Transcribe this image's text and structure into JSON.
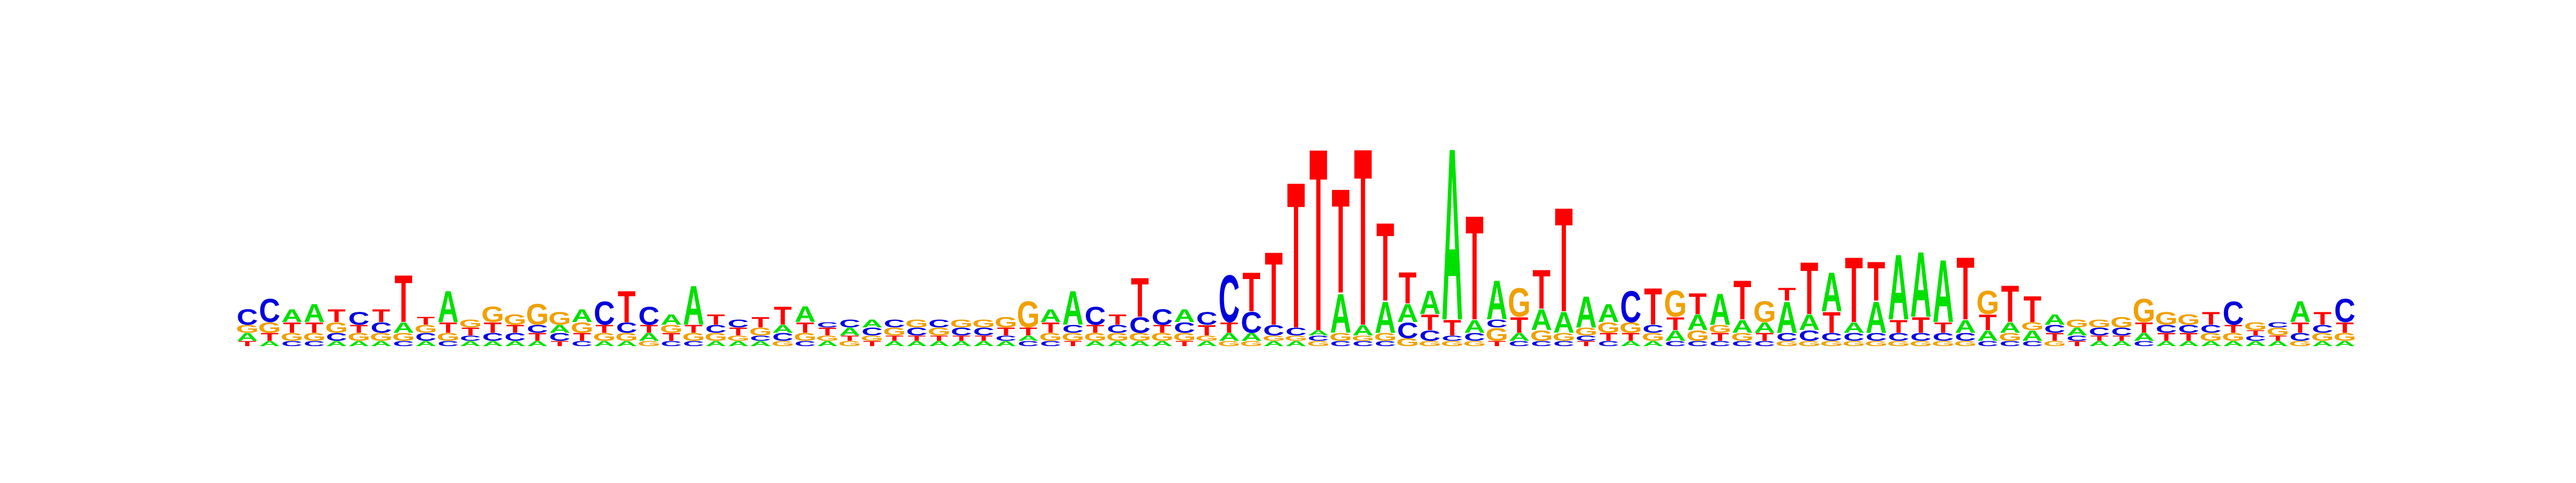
{
  "chart_data": {
    "type": "sequence-logo",
    "title": "",
    "xlabel": "",
    "ylabel": "",
    "alphabet": [
      "A",
      "C",
      "G",
      "T"
    ],
    "colors": {
      "A": "#00e000",
      "C": "#0000dd",
      "G": "#f0a000",
      "T": "#ff0000"
    },
    "ylim": [
      0,
      2
    ],
    "positions": [
      {
        "T": 0.02,
        "A": 0.03,
        "G": 0.03,
        "C": 0.06
      },
      {
        "A": 0.02,
        "T": 0.03,
        "G": 0.04,
        "C": 0.09
      },
      {
        "C": 0.02,
        "G": 0.03,
        "T": 0.04,
        "A": 0.05
      },
      {
        "C": 0.02,
        "G": 0.03,
        "T": 0.04,
        "A": 0.07
      },
      {
        "A": 0.02,
        "C": 0.03,
        "G": 0.04,
        "T": 0.05
      },
      {
        "A": 0.02,
        "G": 0.03,
        "T": 0.03,
        "C": 0.05
      },
      {
        "A": 0.02,
        "G": 0.03,
        "C": 0.04,
        "T": 0.05
      },
      {
        "C": 0.02,
        "G": 0.03,
        "A": 0.04,
        "T": 0.18
      },
      {
        "A": 0.02,
        "C": 0.03,
        "G": 0.03,
        "T": 0.03
      },
      {
        "C": 0.02,
        "G": 0.03,
        "T": 0.04,
        "A": 0.12
      },
      {
        "A": 0.02,
        "C": 0.02,
        "T": 0.03,
        "G": 0.03
      },
      {
        "A": 0.02,
        "C": 0.03,
        "T": 0.04,
        "G": 0.06
      },
      {
        "A": 0.02,
        "C": 0.03,
        "T": 0.03,
        "G": 0.04
      },
      {
        "A": 0.02,
        "T": 0.03,
        "C": 0.03,
        "G": 0.08
      },
      {
        "T": 0.02,
        "C": 0.03,
        "A": 0.03,
        "G": 0.05
      },
      {
        "C": 0.02,
        "T": 0.03,
        "G": 0.04,
        "A": 0.05
      },
      {
        "A": 0.02,
        "G": 0.03,
        "T": 0.03,
        "C": 0.09
      },
      {
        "A": 0.02,
        "G": 0.03,
        "C": 0.04,
        "T": 0.12
      },
      {
        "G": 0.02,
        "A": 0.03,
        "T": 0.03,
        "C": 0.07
      },
      {
        "C": 0.02,
        "T": 0.03,
        "G": 0.03,
        "A": 0.04
      },
      {
        "C": 0.02,
        "G": 0.03,
        "T": 0.03,
        "A": 0.15
      },
      {
        "A": 0.02,
        "G": 0.03,
        "C": 0.03,
        "T": 0.04
      },
      {
        "A": 0.02,
        "G": 0.02,
        "T": 0.03,
        "C": 0.03
      },
      {
        "A": 0.02,
        "C": 0.02,
        "G": 0.03,
        "T": 0.04
      },
      {
        "G": 0.02,
        "C": 0.03,
        "A": 0.03,
        "T": 0.07
      },
      {
        "C": 0.02,
        "G": 0.03,
        "T": 0.04,
        "A": 0.06
      },
      {
        "A": 0.02,
        "G": 0.02,
        "T": 0.03,
        "C": 0.02
      },
      {
        "G": 0.02,
        "T": 0.02,
        "A": 0.03,
        "C": 0.03
      },
      {
        "T": 0.02,
        "G": 0.02,
        "C": 0.03,
        "A": 0.03
      },
      {
        "A": 0.02,
        "T": 0.02,
        "G": 0.03,
        "C": 0.03
      },
      {
        "A": 0.02,
        "T": 0.02,
        "C": 0.03,
        "G": 0.03
      },
      {
        "A": 0.02,
        "T": 0.02,
        "G": 0.03,
        "C": 0.03
      },
      {
        "A": 0.02,
        "T": 0.02,
        "C": 0.03,
        "G": 0.03
      },
      {
        "A": 0.02,
        "T": 0.02,
        "C": 0.03,
        "G": 0.03
      },
      {
        "A": 0.02,
        "C": 0.02,
        "T": 0.03,
        "G": 0.04
      },
      {
        "C": 0.02,
        "A": 0.02,
        "T": 0.03,
        "G": 0.1
      },
      {
        "C": 0.02,
        "G": 0.03,
        "T": 0.04,
        "A": 0.05
      },
      {
        "T": 0.02,
        "G": 0.03,
        "C": 0.03,
        "A": 0.13
      },
      {
        "A": 0.02,
        "G": 0.03,
        "T": 0.03,
        "C": 0.07
      },
      {
        "A": 0.02,
        "G": 0.03,
        "C": 0.03,
        "T": 0.04
      },
      {
        "A": 0.02,
        "G": 0.03,
        "C": 0.06,
        "T": 0.15
      },
      {
        "A": 0.02,
        "G": 0.03,
        "T": 0.03,
        "C": 0.06
      },
      {
        "T": 0.02,
        "G": 0.03,
        "C": 0.04,
        "A": 0.05
      },
      {
        "A": 0.02,
        "G": 0.02,
        "T": 0.04,
        "C": 0.05
      },
      {
        "G": 0.02,
        "A": 0.03,
        "T": 0.04,
        "C": 0.18
      },
      {
        "G": 0.02,
        "A": 0.03,
        "C": 0.08,
        "T": 0.15
      },
      {
        "A": 0.02,
        "G": 0.02,
        "C": 0.04,
        "T": 0.28
      },
      {
        "A": 0.02,
        "G": 0.02,
        "C": 0.03,
        "T": 0.56
      },
      {
        "G": 0.02,
        "C": 0.02,
        "A": 0.02,
        "T": 0.7
      },
      {
        "C": 0.02,
        "G": 0.03,
        "A": 0.15,
        "T": 0.4
      },
      {
        "C": 0.02,
        "G": 0.02,
        "A": 0.04,
        "T": 0.68
      },
      {
        "C": 0.02,
        "G": 0.03,
        "A": 0.12,
        "T": 0.3
      },
      {
        "G": 0.03,
        "C": 0.06,
        "A": 0.07,
        "T": 0.12
      },
      {
        "G": 0.02,
        "C": 0.04,
        "T": 0.06,
        "A": 0.09
      },
      {
        "G": 0.02,
        "C": 0.02,
        "T": 0.06,
        "A": 0.66
      },
      {
        "G": 0.02,
        "C": 0.03,
        "A": 0.05,
        "T": 0.4
      },
      {
        "T": 0.02,
        "G": 0.05,
        "C": 0.03,
        "A": 0.15
      },
      {
        "C": 0.02,
        "A": 0.03,
        "T": 0.06,
        "G": 0.11
      },
      {
        "C": 0.02,
        "G": 0.04,
        "A": 0.08,
        "T": 0.15
      },
      {
        "C": 0.02,
        "G": 0.03,
        "A": 0.08,
        "T": 0.4
      },
      {
        "T": 0.02,
        "C": 0.02,
        "G": 0.03,
        "A": 0.12
      },
      {
        "C": 0.02,
        "T": 0.03,
        "G": 0.04,
        "A": 0.07
      },
      {
        "A": 0.02,
        "T": 0.03,
        "G": 0.04,
        "C": 0.12
      },
      {
        "A": 0.02,
        "G": 0.03,
        "C": 0.03,
        "T": 0.14
      },
      {
        "C": 0.02,
        "A": 0.04,
        "T": 0.05,
        "G": 0.1
      },
      {
        "C": 0.02,
        "G": 0.04,
        "A": 0.06,
        "T": 0.08
      },
      {
        "C": 0.02,
        "T": 0.03,
        "G": 0.03,
        "A": 0.12
      },
      {
        "C": 0.02,
        "G": 0.03,
        "A": 0.05,
        "T": 0.15
      },
      {
        "C": 0.02,
        "T": 0.03,
        "A": 0.04,
        "G": 0.08
      },
      {
        "G": 0.02,
        "C": 0.03,
        "A": 0.12,
        "T": 0.05
      },
      {
        "G": 0.02,
        "C": 0.04,
        "A": 0.06,
        "T": 0.2
      },
      {
        "G": 0.02,
        "C": 0.03,
        "T": 0.08,
        "A": 0.15
      },
      {
        "G": 0.02,
        "C": 0.03,
        "A": 0.04,
        "T": 0.25
      },
      {
        "G": 0.02,
        "C": 0.03,
        "A": 0.12,
        "T": 0.15
      },
      {
        "G": 0.02,
        "C": 0.03,
        "T": 0.05,
        "A": 0.25
      },
      {
        "G": 0.02,
        "C": 0.03,
        "T": 0.06,
        "A": 0.25
      },
      {
        "G": 0.02,
        "C": 0.03,
        "T": 0.04,
        "A": 0.24
      },
      {
        "G": 0.02,
        "C": 0.03,
        "A": 0.05,
        "T": 0.24
      },
      {
        "C": 0.02,
        "A": 0.04,
        "T": 0.06,
        "G": 0.09
      },
      {
        "C": 0.02,
        "G": 0.03,
        "A": 0.04,
        "T": 0.14
      },
      {
        "C": 0.02,
        "A": 0.04,
        "G": 0.03,
        "T": 0.1
      },
      {
        "G": 0.02,
        "T": 0.03,
        "C": 0.03,
        "A": 0.04
      },
      {
        "T": 0.02,
        "C": 0.02,
        "A": 0.03,
        "G": 0.03
      },
      {
        "A": 0.02,
        "T": 0.02,
        "C": 0.03,
        "G": 0.03
      },
      {
        "A": 0.02,
        "T": 0.02,
        "C": 0.03,
        "G": 0.04
      },
      {
        "C": 0.02,
        "A": 0.03,
        "T": 0.04,
        "G": 0.09
      },
      {
        "A": 0.02,
        "T": 0.03,
        "C": 0.03,
        "G": 0.05
      },
      {
        "A": 0.02,
        "T": 0.03,
        "C": 0.03,
        "G": 0.04
      },
      {
        "A": 0.02,
        "G": 0.03,
        "C": 0.03,
        "T": 0.05
      },
      {
        "A": 0.02,
        "G": 0.03,
        "T": 0.03,
        "C": 0.09
      },
      {
        "A": 0.02,
        "C": 0.02,
        "T": 0.02,
        "G": 0.03
      },
      {
        "A": 0.02,
        "T": 0.02,
        "G": 0.03,
        "C": 0.02
      },
      {
        "G": 0.02,
        "C": 0.03,
        "T": 0.04,
        "A": 0.08
      },
      {
        "A": 0.02,
        "G": 0.03,
        "C": 0.03,
        "T": 0.05
      },
      {
        "A": 0.02,
        "G": 0.03,
        "T": 0.04,
        "C": 0.09
      }
    ]
  }
}
